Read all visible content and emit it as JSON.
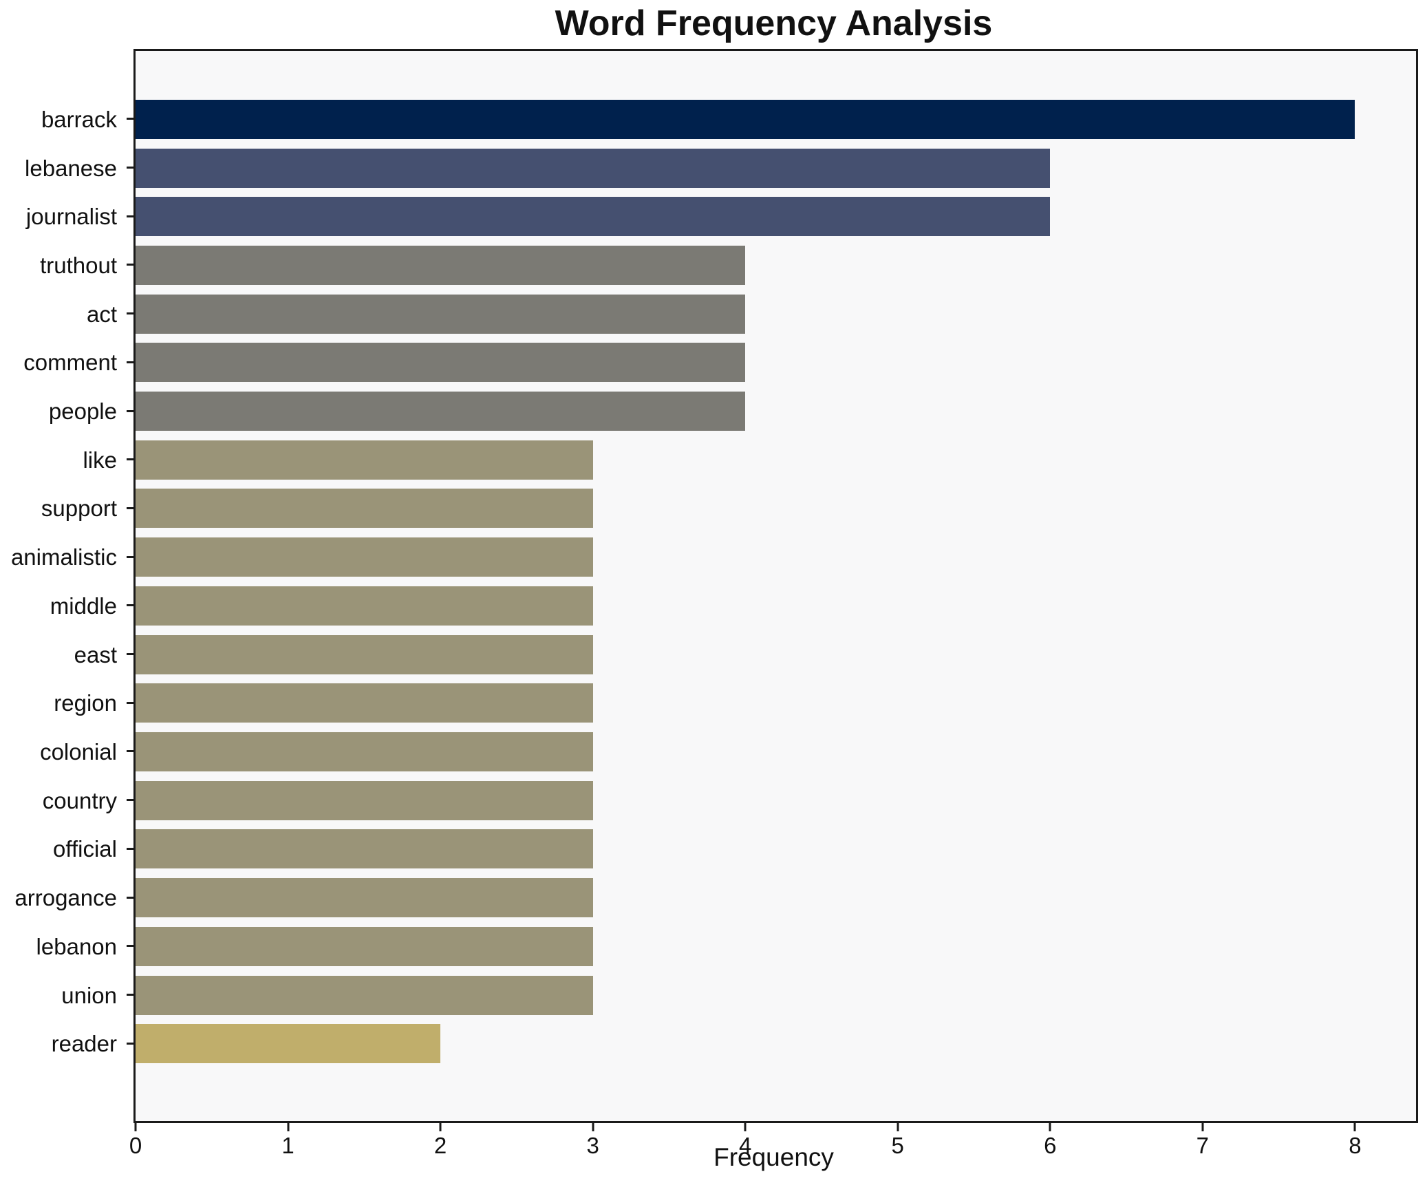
{
  "chart_data": {
    "type": "bar",
    "orientation": "horizontal",
    "title": "Word Frequency Analysis",
    "xlabel": "Frequency",
    "ylabel": "",
    "xlim": [
      0,
      8.4
    ],
    "x_ticks": [
      0,
      1,
      2,
      3,
      4,
      5,
      6,
      7,
      8
    ],
    "grid": false,
    "legend": false,
    "plot_background": "#f8f8f9",
    "spine_color": "#1a1a1a",
    "text_color": "#111111",
    "categories": [
      "barrack",
      "lebanese",
      "journalist",
      "truthout",
      "act",
      "comment",
      "people",
      "like",
      "support",
      "animalistic",
      "middle",
      "east",
      "region",
      "colonial",
      "country",
      "official",
      "arrogance",
      "lebanon",
      "union",
      "reader"
    ],
    "values": [
      8,
      6,
      6,
      4,
      4,
      4,
      4,
      3,
      3,
      3,
      3,
      3,
      3,
      3,
      3,
      3,
      3,
      3,
      3,
      2
    ],
    "bar_colors": [
      "#00214d",
      "#455070",
      "#455070",
      "#7b7a74",
      "#7b7a74",
      "#7b7a74",
      "#7b7a74",
      "#9a9478",
      "#9a9478",
      "#9a9478",
      "#9a9478",
      "#9a9478",
      "#9a9478",
      "#9a9478",
      "#9a9478",
      "#9a9478",
      "#9a9478",
      "#9a9478",
      "#9a9478",
      "#c0ae6b"
    ]
  }
}
